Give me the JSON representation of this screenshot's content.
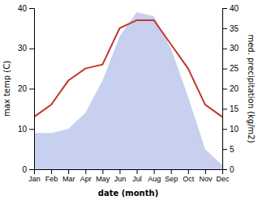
{
  "chart_data": {
    "type": "line",
    "x_label": "date (month)",
    "y_label": "max temp (C)",
    "y2_label": "med. precipitation (kg/m2)",
    "categories": [
      "Jan",
      "Feb",
      "Mar",
      "Apr",
      "May",
      "Jun",
      "Jul",
      "Aug",
      "Sep",
      "Oct",
      "Nov",
      "Dec"
    ],
    "series": [
      {
        "type": "area",
        "axis": "y2",
        "color": "#c8d0f0",
        "values": [
          9,
          9,
          10,
          14,
          22,
          33,
          39,
          38,
          30,
          18,
          5,
          1
        ]
      },
      {
        "type": "line",
        "color": "#c0392b",
        "values": [
          13,
          16,
          22,
          25,
          26,
          35,
          37,
          37,
          31,
          25,
          16,
          13
        ]
      }
    ],
    "ylim": [
      0,
      40
    ],
    "yticks": [
      0,
      10,
      20,
      30,
      40
    ],
    "y2lim": [
      0,
      40
    ],
    "y2ticks": [
      0,
      5,
      10,
      15,
      20,
      25,
      30,
      35,
      40
    ],
    "grid": false
  }
}
